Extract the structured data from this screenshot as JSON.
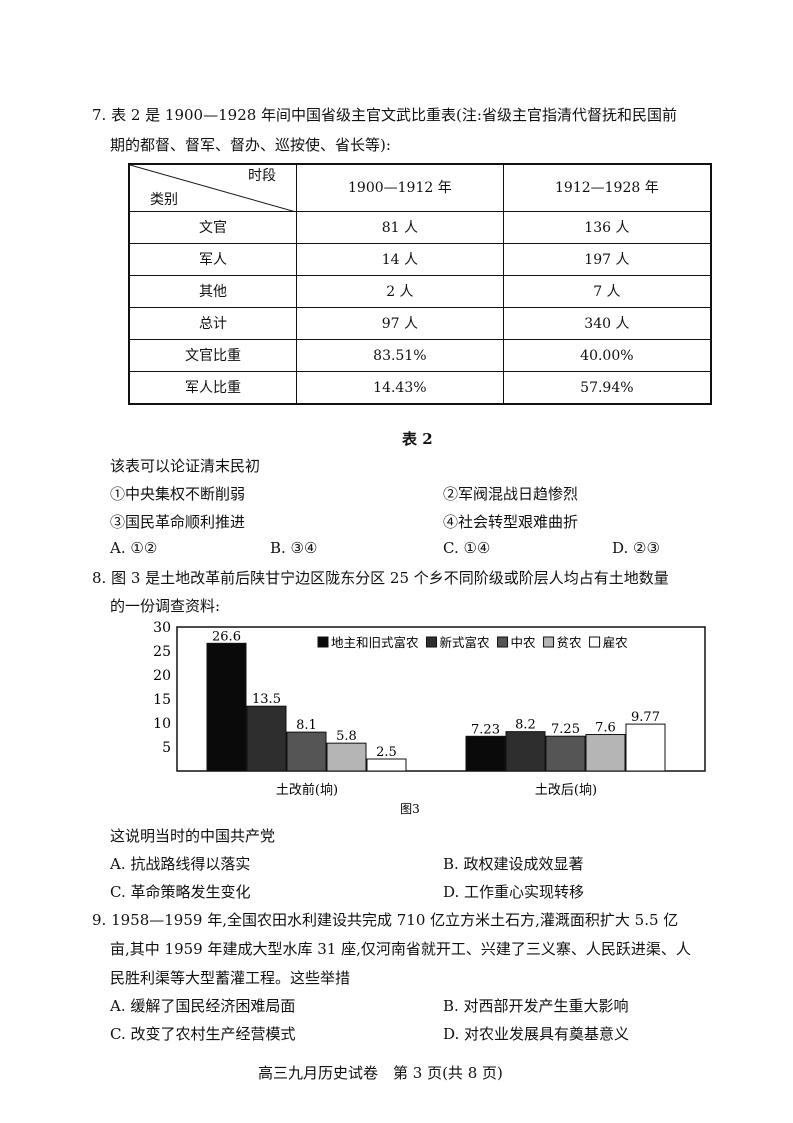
{
  "q7": {
    "line1": "7. 表 2 是 1900—1928 年间中国省级主官文武比重表(注:省级主官指清代督抚和民国前",
    "line2": "期的都督、督军、督办、巡按使、省长等):",
    "table": {
      "corner_top": "时段",
      "corner_bottom": "类别",
      "headers": [
        "1900—1912 年",
        "1912—1928 年"
      ],
      "rows": [
        [
          "文官",
          "81 人",
          "136 人"
        ],
        [
          "军人",
          "14 人",
          "197 人"
        ],
        [
          "其他",
          "2 人",
          "7 人"
        ],
        [
          "总计",
          "97 人",
          "340 人"
        ],
        [
          "文官比重",
          "83.51%",
          "40.00%"
        ],
        [
          "军人比重",
          "14.43%",
          "57.94%"
        ]
      ]
    },
    "caption": "表 2",
    "stem": "该表可以论证清末民初",
    "items": [
      "①中央集权不断削弱",
      "②军阀混战日趋惨烈",
      "③国民革命顺利推进",
      "④社会转型艰难曲折"
    ],
    "options": [
      "A. ①②",
      "B. ③④",
      "C. ①④",
      "D. ②③"
    ]
  },
  "q8": {
    "line1": "8. 图 3 是土地改革前后陕甘宁边区陇东分区 25 个乡不同阶级或阶层人均占有土地数量",
    "line2": "的一份调查资料:",
    "stem": "这说明当时的中国共产党",
    "options": [
      "A. 抗战路线得以落实",
      "B. 政权建设成效显著",
      "C. 革命策略发生变化",
      "D. 工作重心实现转移"
    ]
  },
  "chart_data": {
    "type": "bar",
    "title": "图3",
    "categories": [
      "土改前(垧)",
      "土改后(垧)"
    ],
    "ylim": [
      0,
      30
    ],
    "yticks": [
      5,
      10,
      15,
      20,
      25,
      30
    ],
    "legend": "top-right",
    "series": [
      {
        "name": "地主和旧式富农",
        "values": [
          26.6,
          7.23
        ],
        "color": "#0a0a0a"
      },
      {
        "name": "新式富农",
        "values": [
          13.5,
          8.2
        ],
        "color": "#2e2e2e"
      },
      {
        "name": "中农",
        "values": [
          8.1,
          7.25
        ],
        "color": "#555555"
      },
      {
        "name": "贫农",
        "values": [
          5.8,
          7.6
        ],
        "color": "#b5b5b5"
      },
      {
        "name": "雇农",
        "values": [
          2.5,
          9.77
        ],
        "color": "#ffffff"
      }
    ]
  },
  "q9": {
    "line1": "9. 1958—1959 年,全国农田水利建设共完成 710 亿立方米土石方,灌溉面积扩大 5.5 亿",
    "line2": "亩,其中 1959 年建成大型水库 31 座,仅河南省就开工、兴建了三义寨、人民跃进渠、人",
    "line3": "民胜利渠等大型蓄灌工程。这些举措",
    "options": [
      "A. 缓解了国民经济困难局面",
      "B. 对西部开发产生重大影响",
      "C. 改变了农村生产经营模式",
      "D. 对农业发展具有奠基意义"
    ]
  },
  "footer": "高三九月历史试卷　第 3 页(共 8 页)"
}
